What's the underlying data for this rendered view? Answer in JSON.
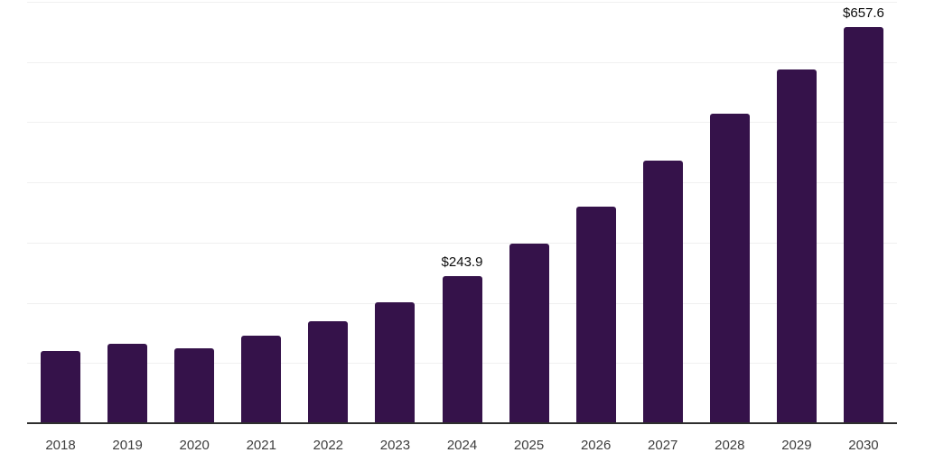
{
  "chart_data": {
    "type": "bar",
    "title": "",
    "xlabel": "",
    "ylabel": "",
    "categories": [
      "2018",
      "2019",
      "2020",
      "2021",
      "2022",
      "2023",
      "2024",
      "2025",
      "2026",
      "2027",
      "2028",
      "2029",
      "2030"
    ],
    "values": [
      120.1,
      131.4,
      124.3,
      145.0,
      169.3,
      201.6,
      243.9,
      298.4,
      359.0,
      435.5,
      514.7,
      586.9,
      657.6
    ],
    "value_labels": [
      {
        "category_index": 6,
        "text": "$243.9"
      },
      {
        "category_index": 12,
        "text": "$657.6"
      }
    ],
    "ylim": [
      0,
      700
    ],
    "gridline_step": 100,
    "grid": true,
    "y_tick_labels_shown": false,
    "legend": false,
    "colors": {
      "bar": "#35124A",
      "axis_line": "#2E2E2E",
      "gridline": "#F0F0F0",
      "value_label": "#0B0B0B",
      "tick_label": "#3D3D3D",
      "background": "#FFFFFF"
    }
  }
}
